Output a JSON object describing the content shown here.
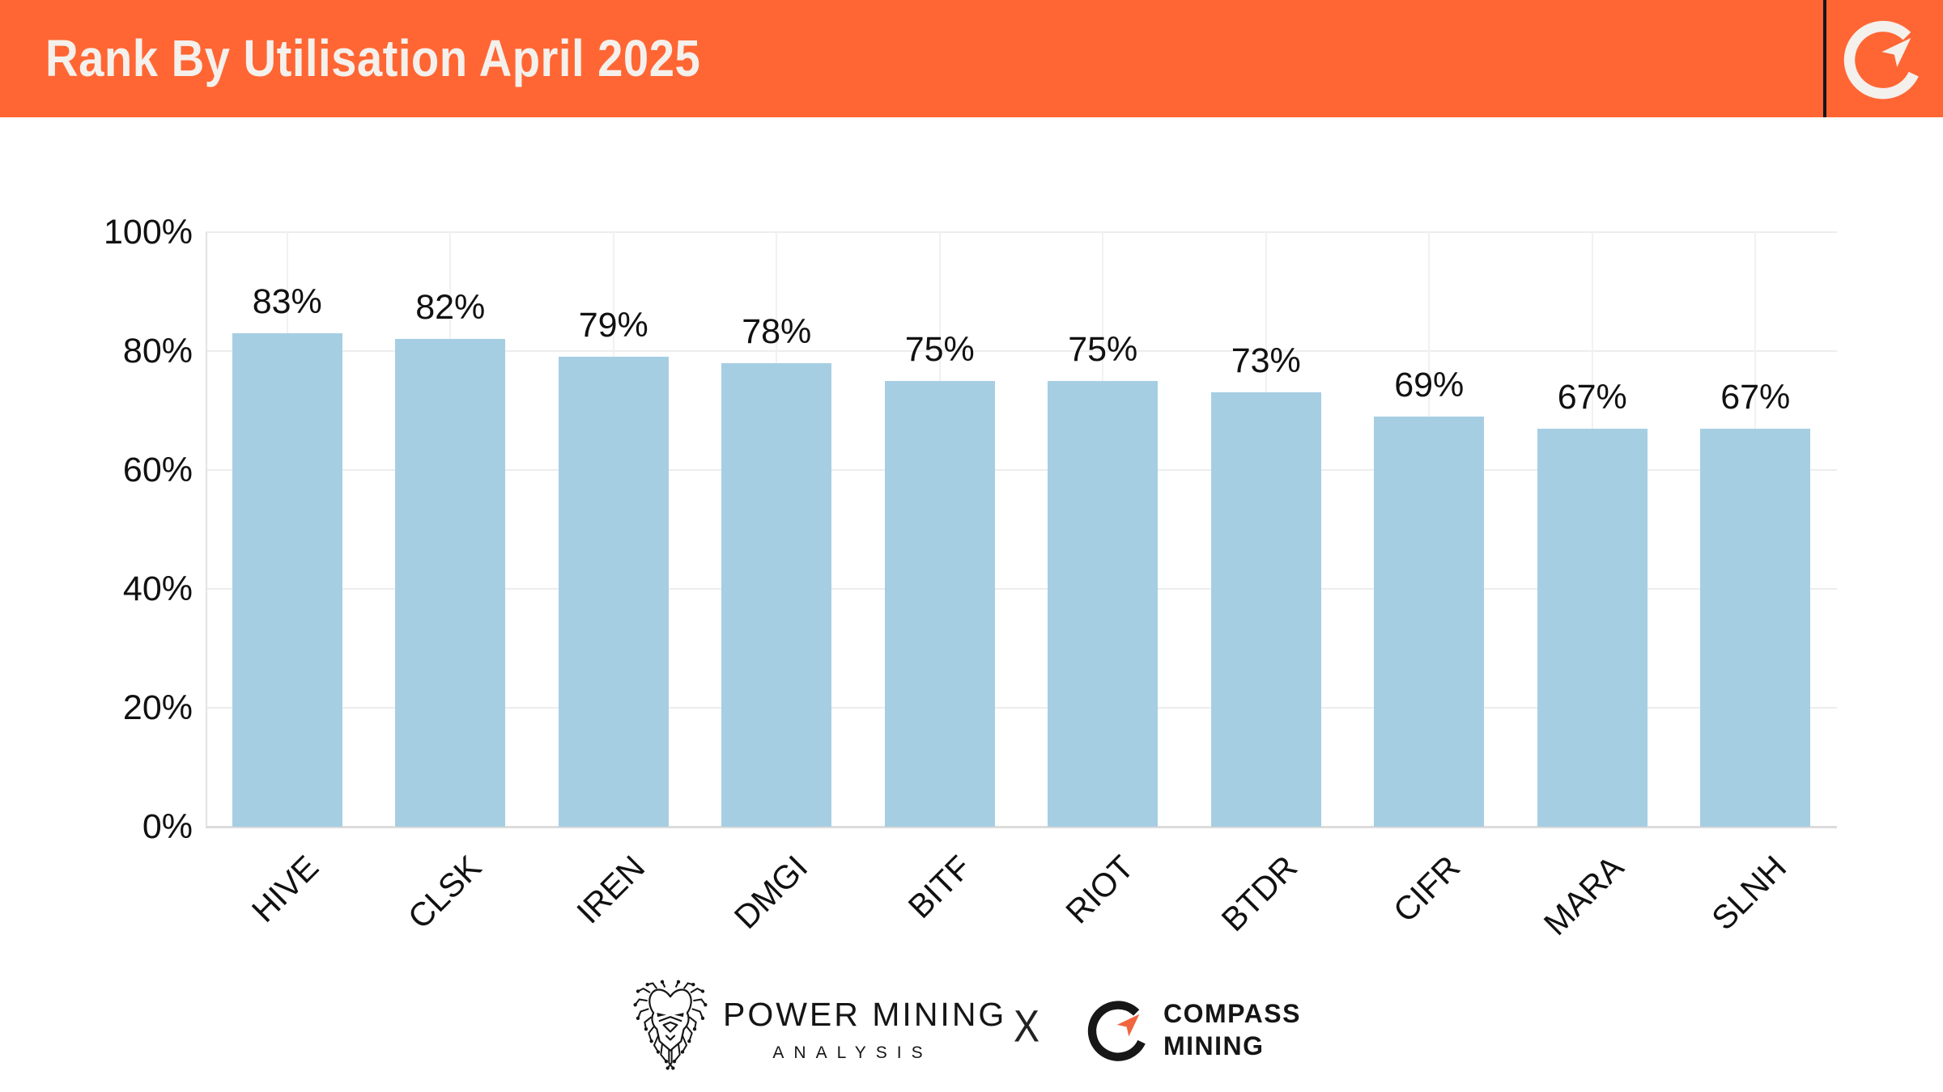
{
  "header": {
    "title": "Rank By Utilisation April 2025",
    "background_color": "#ff6633",
    "divider_color": "#16161e",
    "logo_icon": "compass-c-arrow-icon",
    "logo_color": "#f4f0ec"
  },
  "chart_data": {
    "type": "bar",
    "title": "Rank By Utilisation April 2025",
    "categories": [
      "HIVE",
      "CLSK",
      "IREN",
      "DMGI",
      "BITF",
      "RIOT",
      "BTDR",
      "CIFR",
      "MARA",
      "SLNH"
    ],
    "values": [
      83,
      82,
      79,
      78,
      75,
      75,
      73,
      69,
      67,
      67
    ],
    "value_labels": [
      "83%",
      "82%",
      "79%",
      "78%",
      "75%",
      "75%",
      "73%",
      "69%",
      "67%",
      "67%"
    ],
    "xlabel": "",
    "ylabel": "",
    "ylim": [
      0,
      100
    ],
    "yticks": [
      0,
      20,
      40,
      60,
      80,
      100
    ],
    "ytick_labels": [
      "0%",
      "20%",
      "40%",
      "60%",
      "80%",
      "100%"
    ],
    "grid": true,
    "legend_position": "none",
    "x_tick_rotation_deg": 45,
    "bar_color": "#a6cee3",
    "gridline_color": "#ededed",
    "label_color": "#111111"
  },
  "footer": {
    "power_mining_logo": "circuit-lion-icon",
    "power_mining_name": "POWER MINING",
    "power_mining_subtitle": "ANALYSIS",
    "separator": "X",
    "compass_line1": "COMPASS",
    "compass_line2": "MINING",
    "compass_ring_color": "#171717",
    "compass_arrow_color": "#f0663f"
  }
}
